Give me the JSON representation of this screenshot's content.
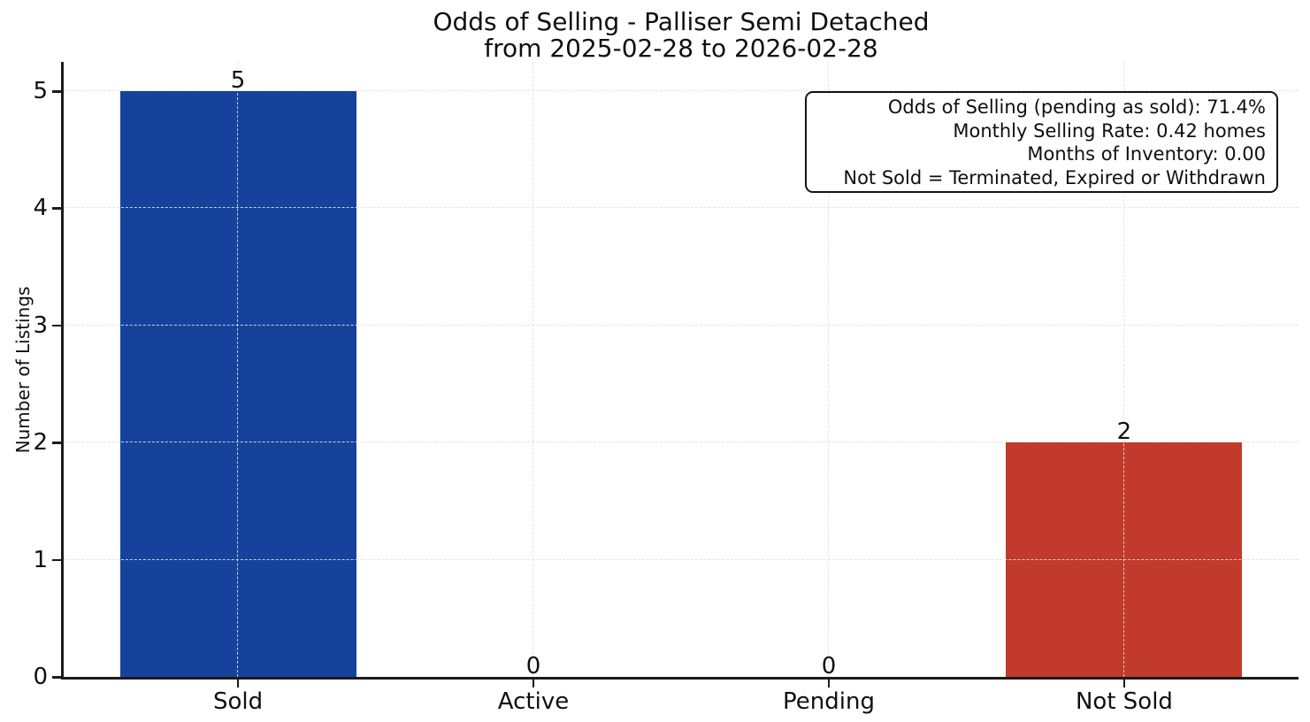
{
  "chart_data": {
    "type": "bar",
    "title": "Odds of Selling - Palliser Semi Detached",
    "subtitle": "from 2025-02-28 to 2026-02-28",
    "categories": [
      "Sold",
      "Active",
      "Pending",
      "Not Sold"
    ],
    "values": [
      5,
      0,
      0,
      2
    ],
    "value_labels": [
      "5",
      "0",
      "0",
      "2"
    ],
    "bar_colors": [
      "#15429b",
      "#15429b",
      "#15429b",
      "#c23a2b"
    ],
    "xlabel": "",
    "ylabel": "Number of Listings",
    "ylim": [
      0,
      5.25
    ],
    "yticks": [
      0,
      1,
      2,
      3,
      4,
      5
    ],
    "grid": "dashed, both axes, drawn over bars",
    "legend": "none",
    "annotation": {
      "lines": [
        "Odds of Selling (pending as sold): 71.4%",
        "Monthly Selling Rate: 0.42 homes",
        "Months of Inventory: 0.00",
        "Not Sold = Terminated, Expired or Withdrawn"
      ]
    },
    "colors": {
      "sold_bar": "#15429b",
      "not_sold_bar": "#c23a2b",
      "grid": "#e0e0e0",
      "axis": "#1b1b1b",
      "background": "#ffffff"
    }
  }
}
